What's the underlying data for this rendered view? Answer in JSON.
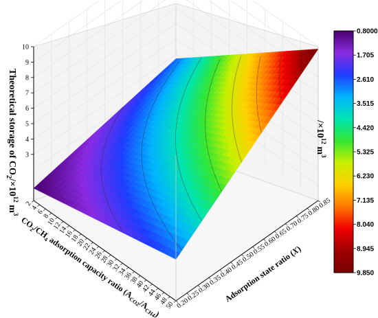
{
  "chart_data": {
    "type": "surface3d",
    "title": "",
    "zlabel": {
      "lead": "Theoretical storage of CO",
      "sub": "2",
      "mid": "/×10",
      "sup": "12",
      "unit": " m",
      "unit_sup": "3"
    },
    "xlabel": {
      "lead": "CO",
      "s1": "2",
      "mid1": "/CH",
      "s2": "4",
      "mid2": " adsorption capacity ratio (A",
      "s3": "CO2",
      "mid3": "/A",
      "s4": "CH4",
      "tail": ")"
    },
    "ylabel": {
      "lead": "Adsorption state ratio (",
      "var": "X",
      "tail": ")"
    },
    "z_ticks": [
      "3",
      "4",
      "5",
      "6",
      "7",
      "8",
      "9",
      "10"
    ],
    "x_ticks": [
      "2",
      "4",
      "6",
      "8",
      "10",
      "12",
      "14",
      "16",
      "18",
      "20",
      "22",
      "24",
      "26",
      "28",
      "30",
      "32",
      "34",
      "36",
      "38",
      "40",
      "42",
      "44",
      "46",
      "48",
      "50"
    ],
    "y_ticks": [
      "0.20",
      "0.25",
      "0.30",
      "0.35",
      "0.40",
      "0.45",
      "0.50",
      "0.55",
      "0.60",
      "0.65",
      "0.70",
      "0.75",
      "0.80",
      "0.85"
    ],
    "xlim": [
      2,
      50
    ],
    "ylim": [
      0.2,
      0.85
    ],
    "zlim": [
      0,
      10
    ],
    "colorbar": {
      "title": {
        "lead": "/×10",
        "sup": "12",
        "unit": " m",
        "unit_sup": "3"
      },
      "ticks": [
        "0.8000",
        "1.705",
        "2.610",
        "3.515",
        "4.420",
        "5.325",
        "6.230",
        "7.135",
        "8.040",
        "8.945",
        "9.850"
      ],
      "colors_top_to_bottom": [
        "#4b0070",
        "#8a2be2",
        "#1e3cff",
        "#00b4ff",
        "#00e5b0",
        "#32e632",
        "#c8f000",
        "#ffd000",
        "#ff7800",
        "#f00000",
        "#a00000",
        "#7a0000"
      ]
    },
    "surface_corner_values": {
      "x_low_y_low": 0.8,
      "x_high_y_low": 2.7,
      "x_low_y_high": 2.7,
      "x_high_y_high": 9.85
    }
  }
}
